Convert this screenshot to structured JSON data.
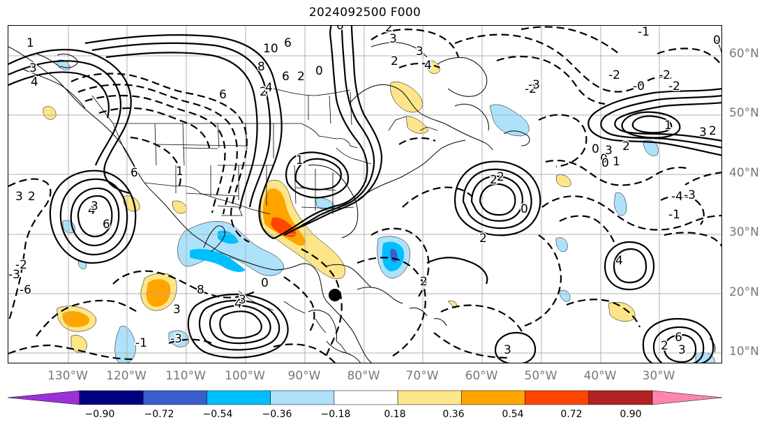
{
  "title": "2024092500 F000",
  "map": {
    "lat_labels": [
      "60°N",
      "50°N",
      "40°N",
      "30°N",
      "20°N",
      "10°N"
    ],
    "lon_labels": [
      "130°W",
      "120°W",
      "110°W",
      "100°W",
      "90°W",
      "80°W",
      "70°W",
      "60°W",
      "50°W",
      "40°W",
      "30°W"
    ],
    "contour_labels": [
      "1",
      "10",
      "6",
      "8",
      "3",
      "4",
      "6",
      "2",
      "4",
      "6",
      "2",
      "0",
      "3",
      "2",
      "4",
      "3",
      "2",
      "0",
      "1",
      "1",
      "6",
      "3",
      "2",
      "4",
      "3",
      "6",
      "8",
      "4",
      "3",
      "2",
      "0",
      "3",
      "2",
      "2",
      "2",
      "0",
      "0",
      "0",
      "0",
      "1",
      "2",
      "3",
      "1",
      "3",
      "2",
      "0",
      "2",
      "6",
      "3",
      "4",
      "3",
      "-1",
      "-3",
      "-2",
      "-3",
      "-2",
      "-1",
      "-0",
      "-2",
      "-4",
      "-3",
      "-1",
      "-6",
      "-2",
      "-3",
      "-2"
    ],
    "marker": "storm-center-dot"
  },
  "colorbar": {
    "tick_labels": [
      "−0.90",
      "−0.72",
      "−0.54",
      "−0.36",
      "−0.18",
      "0.18",
      "0.36",
      "0.54",
      "0.72",
      "0.90"
    ],
    "colors": [
      "#9b30d9",
      "#000080",
      "#3a5fcd",
      "#00bfff",
      "#aee2fa",
      "#ffffff",
      "#fde68a",
      "#ffa500",
      "#ff4500",
      "#b22222",
      "#ff85b0"
    ]
  }
}
